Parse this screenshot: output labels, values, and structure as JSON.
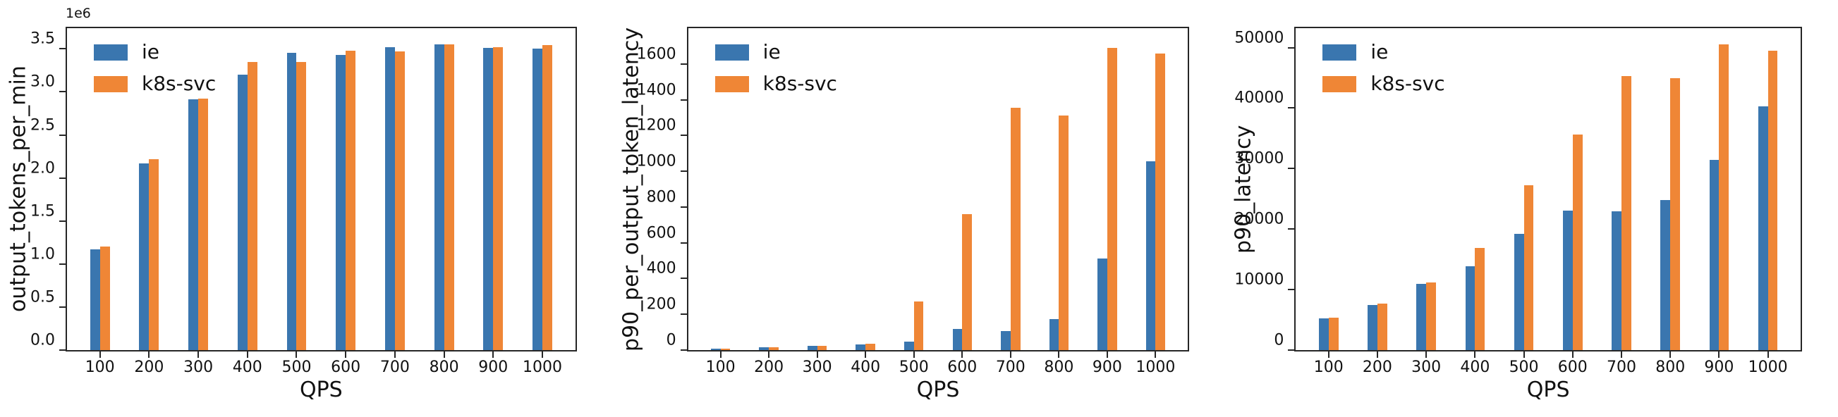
{
  "figure": {
    "background": "#ffffff",
    "spine_color": "#262626",
    "text_color": "#111111"
  },
  "legend": {
    "position": "upper left",
    "items": [
      {
        "label": "ie",
        "color": "#3a76af"
      },
      {
        "label": "k8s-svc",
        "color": "#ef8636"
      }
    ]
  },
  "chart_data": [
    {
      "type": "bar",
      "title": "",
      "xlabel": "QPS",
      "ylabel": "output_tokens_per_min",
      "y_offset_text": "1e6",
      "grid": false,
      "legend_position": "upper left",
      "categories": [
        100,
        200,
        300,
        400,
        500,
        600,
        700,
        800,
        900,
        1000
      ],
      "series": [
        {
          "name": "ie",
          "color": "#3a76af",
          "values": [
            1170000,
            2170000,
            2910000,
            3200000,
            3450000,
            3430000,
            3520000,
            3550000,
            3510000,
            3500000
          ]
        },
        {
          "name": "k8s-svc",
          "color": "#ef8636",
          "values": [
            1200000,
            2220000,
            2920000,
            3350000,
            3350000,
            3480000,
            3470000,
            3550000,
            3520000,
            3540000
          ]
        }
      ],
      "ylim": [
        0,
        3740000
      ],
      "yticks": [
        0,
        500000,
        1000000,
        1500000,
        2000000,
        2500000,
        3000000,
        3500000
      ],
      "ytick_labels": [
        "0.0",
        "0.5",
        "1.0",
        "1.5",
        "2.0",
        "2.5",
        "3.0",
        "3.5"
      ]
    },
    {
      "type": "bar",
      "title": "",
      "xlabel": "QPS",
      "ylabel": "p90_per_output_token_latency",
      "grid": false,
      "legend_position": "upper left",
      "categories": [
        100,
        200,
        300,
        400,
        500,
        600,
        700,
        800,
        900,
        1000
      ],
      "series": [
        {
          "name": "ie",
          "color": "#3a76af",
          "values": [
            8,
            15,
            22,
            33,
            47,
            117,
            108,
            175,
            513,
            1057
          ]
        },
        {
          "name": "k8s-svc",
          "color": "#ef8636",
          "values": [
            8,
            15,
            22,
            37,
            270,
            760,
            1355,
            1312,
            1690,
            1660
          ]
        }
      ],
      "ylim": [
        0,
        1800
      ],
      "yticks": [
        0,
        200,
        400,
        600,
        800,
        1000,
        1200,
        1400,
        1600
      ],
      "ytick_labels": [
        "0",
        "200",
        "400",
        "600",
        "800",
        "1000",
        "1200",
        "1400",
        "1600"
      ]
    },
    {
      "type": "bar",
      "title": "",
      "xlabel": "QPS",
      "ylabel": "p90_latency",
      "grid": false,
      "legend_position": "upper left",
      "categories": [
        100,
        200,
        300,
        400,
        500,
        600,
        700,
        800,
        900,
        1000
      ],
      "series": [
        {
          "name": "ie",
          "color": "#3a76af",
          "values": [
            5200,
            7400,
            10900,
            13900,
            19200,
            23100,
            22900,
            24800,
            31400,
            40300
          ]
        },
        {
          "name": "k8s-svc",
          "color": "#ef8636",
          "values": [
            5400,
            7700,
            11200,
            16900,
            27200,
            35600,
            45300,
            44900,
            50500,
            49500
          ]
        }
      ],
      "ylim": [
        0,
        53200
      ],
      "yticks": [
        0,
        10000,
        20000,
        30000,
        40000,
        50000
      ],
      "ytick_labels": [
        "0",
        "10000",
        "20000",
        "30000",
        "40000",
        "50000"
      ]
    }
  ]
}
